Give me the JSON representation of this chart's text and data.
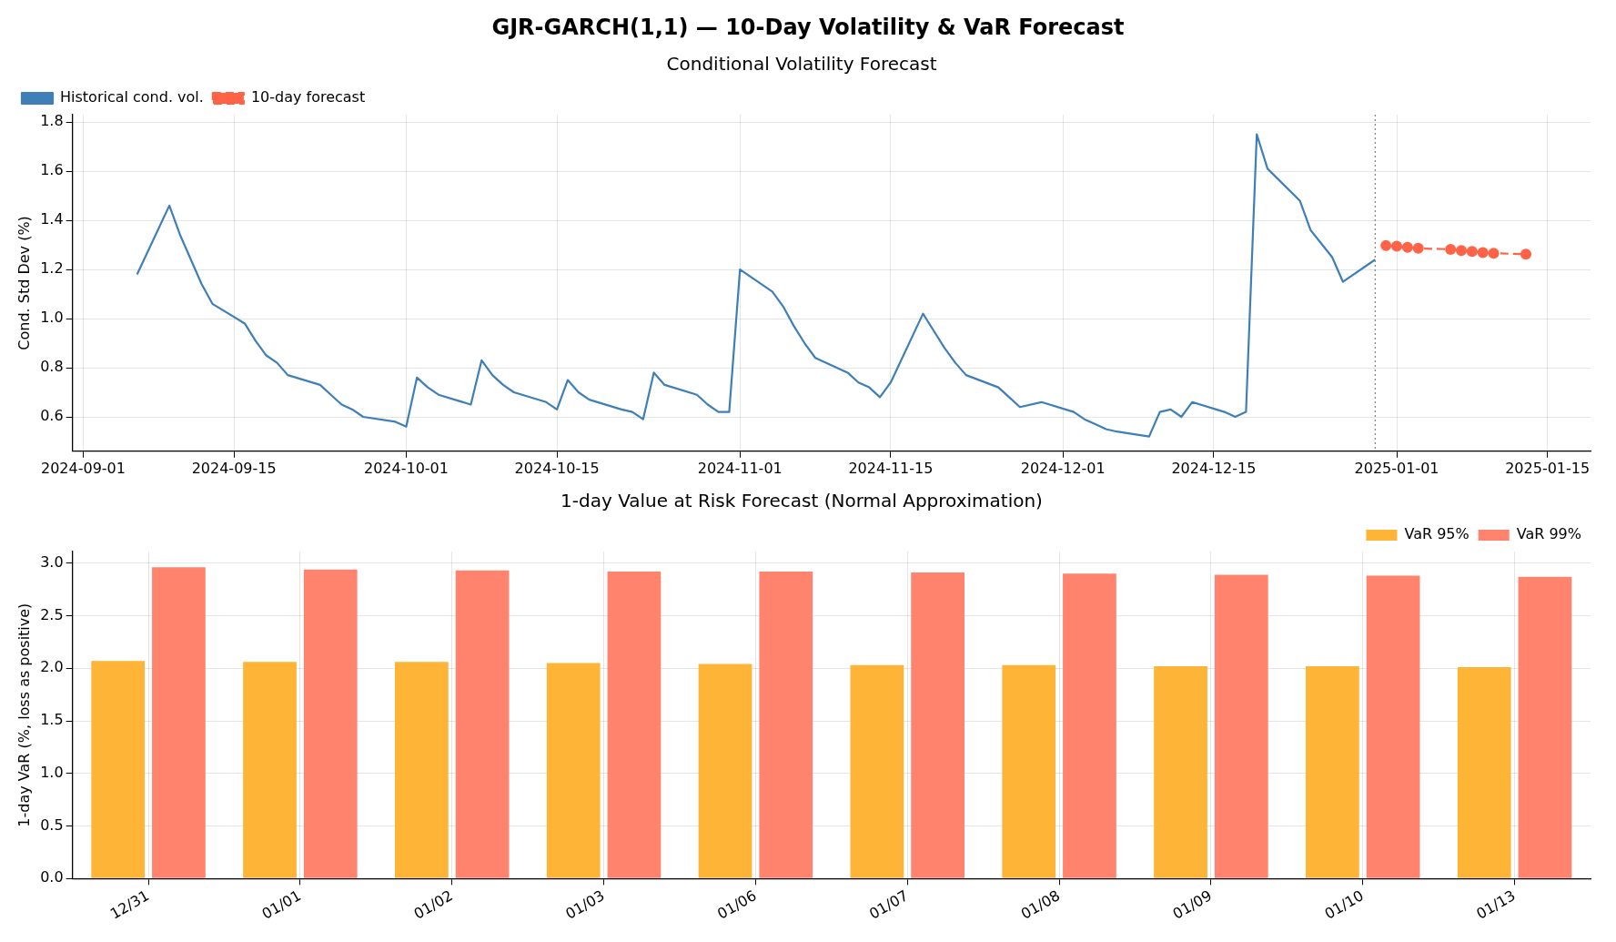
{
  "chart_data": [
    {
      "type": "line",
      "title": "GJR-GARCH(1,1) — 10-Day Volatility & VaR Forecast",
      "subtitle": "Conditional Volatility Forecast",
      "ylabel": "Cond. Std Dev (%)",
      "series": [
        {
          "name": "Historical cond. vol.",
          "color": "#3f7fb8",
          "marker": "none",
          "line_style": "solid",
          "x": [
            "2024-09-06",
            "2024-09-09",
            "2024-09-10",
            "2024-09-11",
            "2024-09-12",
            "2024-09-13",
            "2024-09-16",
            "2024-09-17",
            "2024-09-18",
            "2024-09-19",
            "2024-09-20",
            "2024-09-23",
            "2024-09-24",
            "2024-09-25",
            "2024-09-26",
            "2024-09-27",
            "2024-09-30",
            "2024-10-01",
            "2024-10-02",
            "2024-10-03",
            "2024-10-04",
            "2024-10-07",
            "2024-10-08",
            "2024-10-09",
            "2024-10-10",
            "2024-10-11",
            "2024-10-14",
            "2024-10-15",
            "2024-10-16",
            "2024-10-17",
            "2024-10-18",
            "2024-10-21",
            "2024-10-22",
            "2024-10-23",
            "2024-10-24",
            "2024-10-25",
            "2024-10-28",
            "2024-10-29",
            "2024-10-30",
            "2024-10-31",
            "2024-11-01",
            "2024-11-04",
            "2024-11-05",
            "2024-11-06",
            "2024-11-07",
            "2024-11-08",
            "2024-11-11",
            "2024-11-12",
            "2024-11-13",
            "2024-11-14",
            "2024-11-15",
            "2024-11-18",
            "2024-11-19",
            "2024-11-20",
            "2024-11-21",
            "2024-11-22",
            "2024-11-25",
            "2024-11-26",
            "2024-11-27",
            "2024-11-29",
            "2024-12-02",
            "2024-12-03",
            "2024-12-04",
            "2024-12-05",
            "2024-12-06",
            "2024-12-09",
            "2024-12-10",
            "2024-12-11",
            "2024-12-12",
            "2024-12-13",
            "2024-12-16",
            "2024-12-17",
            "2024-12-18",
            "2024-12-19",
            "2024-12-20",
            "2024-12-23",
            "2024-12-24",
            "2024-12-26",
            "2024-12-27",
            "2024-12-30"
          ],
          "values": [
            1.18,
            1.46,
            1.34,
            1.24,
            1.14,
            1.06,
            0.98,
            0.91,
            0.85,
            0.82,
            0.77,
            0.73,
            0.69,
            0.65,
            0.63,
            0.6,
            0.58,
            0.56,
            0.76,
            0.72,
            0.69,
            0.65,
            0.83,
            0.77,
            0.73,
            0.7,
            0.66,
            0.63,
            0.75,
            0.7,
            0.67,
            0.63,
            0.62,
            0.59,
            0.78,
            0.73,
            0.69,
            0.65,
            0.62,
            0.62,
            1.2,
            1.11,
            1.05,
            0.97,
            0.9,
            0.84,
            0.78,
            0.74,
            0.72,
            0.68,
            0.74,
            1.02,
            0.95,
            0.88,
            0.82,
            0.77,
            0.72,
            0.68,
            0.64,
            0.66,
            0.62,
            0.59,
            0.57,
            0.55,
            0.54,
            0.52,
            0.62,
            0.63,
            0.6,
            0.66,
            0.62,
            0.6,
            0.62,
            1.75,
            1.61,
            1.48,
            1.36,
            1.25,
            1.15,
            1.24
          ]
        },
        {
          "name": "10-day forecast",
          "color": "#ff6347",
          "marker": "circle",
          "line_style": "dashed",
          "x": [
            "2024-12-31",
            "2025-01-01",
            "2025-01-02",
            "2025-01-03",
            "2025-01-06",
            "2025-01-07",
            "2025-01-08",
            "2025-01-09",
            "2025-01-10",
            "2025-01-13"
          ],
          "values": [
            1.297,
            1.295,
            1.29,
            1.286,
            1.282,
            1.277,
            1.273,
            1.269,
            1.266,
            1.262
          ]
        }
      ],
      "xlim": [
        "2024-08-31",
        "2025-01-19"
      ],
      "xticks": [
        "2024-09-01",
        "2024-09-15",
        "2024-10-01",
        "2024-10-15",
        "2024-11-01",
        "2024-11-15",
        "2024-12-01",
        "2024-12-15",
        "2025-01-01",
        "2025-01-15"
      ],
      "ylim": [
        0.46,
        1.83
      ],
      "yticks": [
        0.6,
        0.8,
        {
          "value": 1.0,
          "label": "1.0"
        },
        1.2,
        1.4,
        1.6,
        1.8
      ],
      "ref_lines": [
        {
          "axis": "x",
          "value": "2024-12-30",
          "color": "#808080",
          "line_style": "dotted"
        }
      ],
      "grid": true,
      "legend": "top left"
    },
    {
      "type": "bar",
      "title": "1-day Value at Risk Forecast (Normal Approximation)",
      "ylabel": "1-day VaR (%, loss as positive)",
      "categories": [
        "12/31",
        "01/01",
        "01/02",
        "01/03",
        "01/06",
        "01/07",
        "01/08",
        "01/09",
        "01/10",
        "01/13"
      ],
      "series": [
        {
          "name": "VaR 95%",
          "color": "#fdb437",
          "values": [
            2.07,
            2.06,
            2.06,
            2.05,
            2.04,
            2.03,
            2.03,
            2.02,
            2.02,
            2.01
          ]
        },
        {
          "name": "VaR 99%",
          "color": "#ff836d",
          "values": [
            2.96,
            2.94,
            2.93,
            2.92,
            2.92,
            2.91,
            2.9,
            2.89,
            2.88,
            2.87
          ]
        }
      ],
      "ylim": [
        0,
        3.11
      ],
      "yticks": [
        {
          "value": 0,
          "label": "0.0"
        },
        0.5,
        {
          "value": 1,
          "label": "1.0"
        },
        1.5,
        {
          "value": 2,
          "label": "2.0"
        },
        2.5,
        {
          "value": 3,
          "label": "3.0"
        }
      ],
      "grid": true,
      "legend": "top right"
    }
  ]
}
